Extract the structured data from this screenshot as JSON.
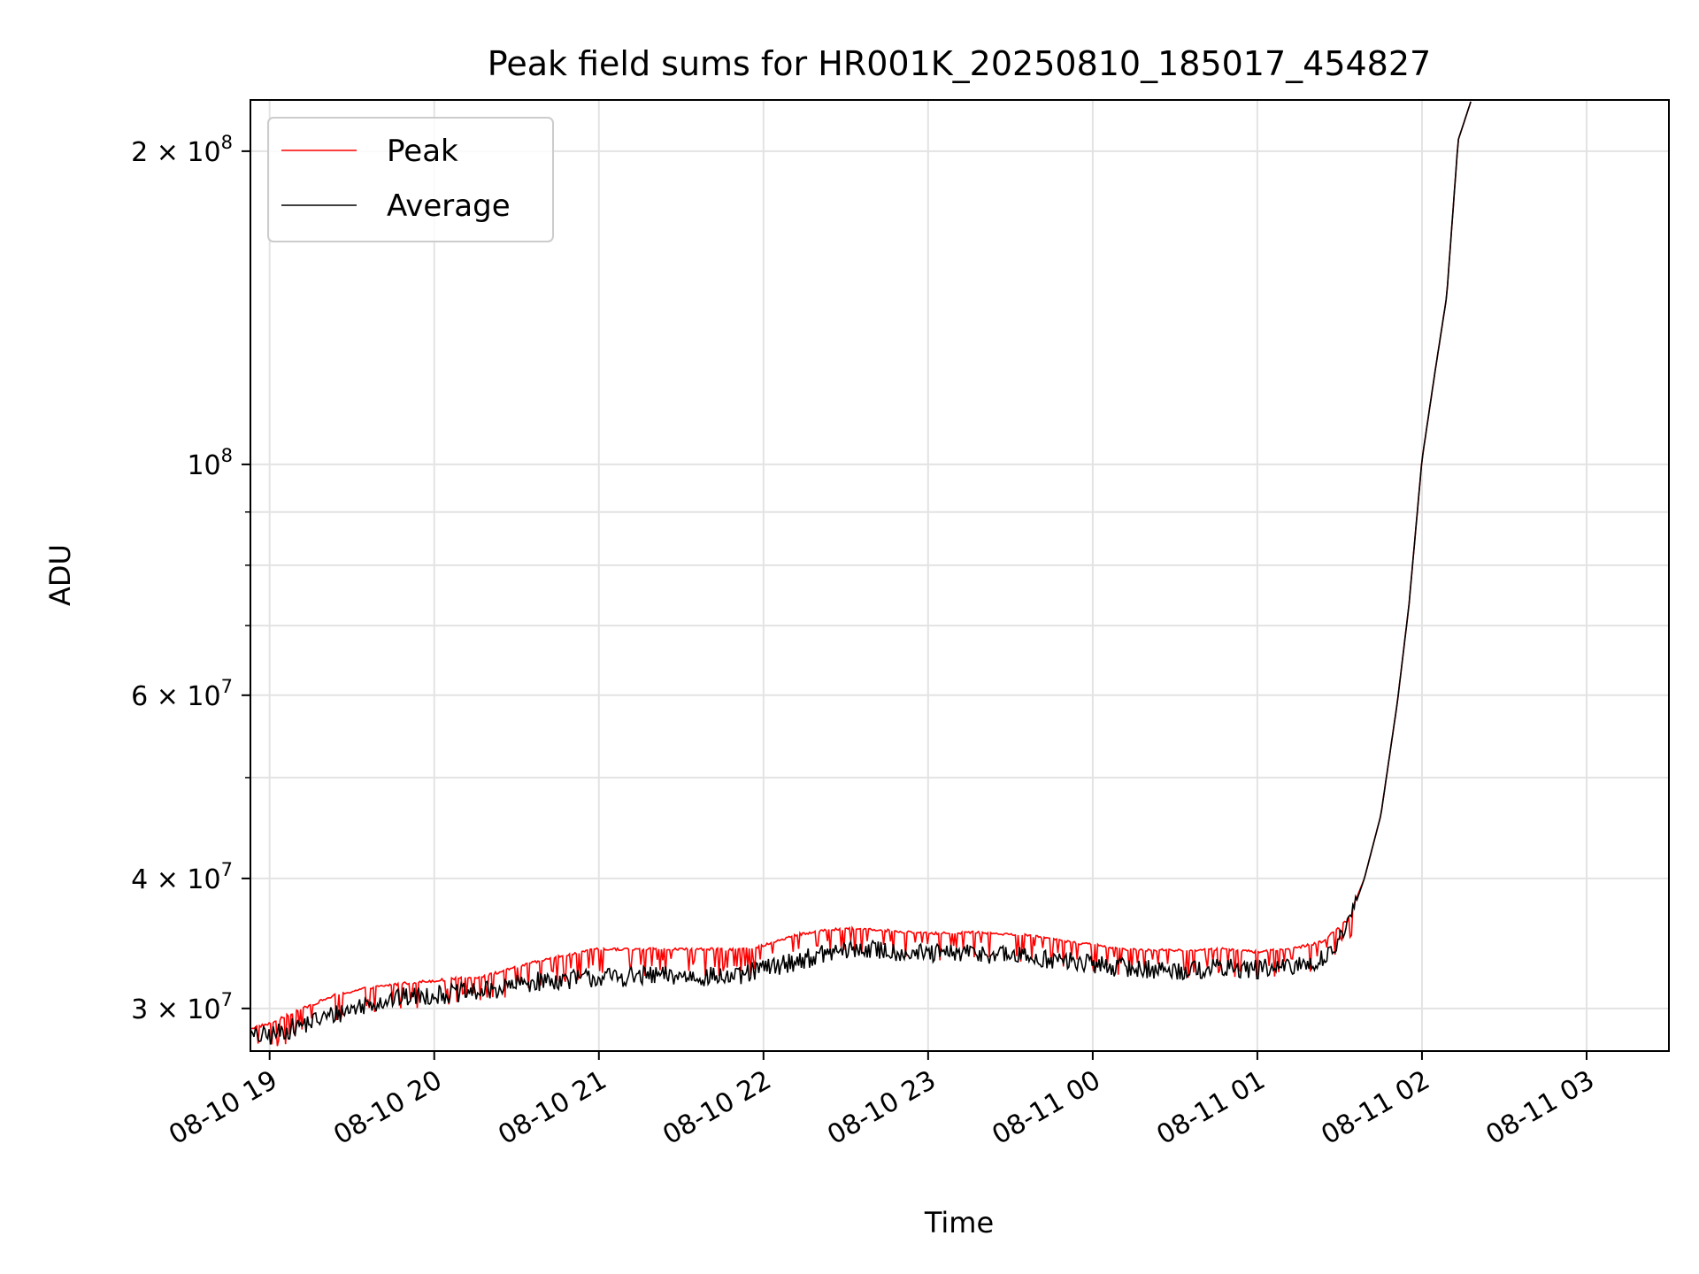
{
  "chart_data": {
    "type": "line",
    "title": "Peak field sums for HR001K_20250810_185017_454827",
    "xlabel": "Time",
    "ylabel": "ADU",
    "y_scale": "log",
    "grid": true,
    "legend_placement": "upper-left",
    "xlim": [
      "2025-08-10 18:53",
      "2025-08-11 03:30"
    ],
    "ylim": [
      27300000,
      224000000
    ],
    "x_tick_labels": [
      "08-10 19",
      "08-10 20",
      "08-10 21",
      "08-10 22",
      "08-10 23",
      "08-11 00",
      "08-11 01",
      "08-11 02",
      "08-11 03"
    ],
    "x_tick_hours": [
      19,
      20,
      21,
      22,
      23,
      24,
      25,
      26,
      27
    ],
    "y_major_ticks": [
      {
        "value": 30000000,
        "mantissa": "3",
        "exp": "7"
      },
      {
        "value": 40000000,
        "mantissa": "4",
        "exp": "7"
      },
      {
        "value": 60000000,
        "mantissa": "6",
        "exp": "7"
      },
      {
        "value": 100000000,
        "mantissa": "",
        "exp": "8"
      },
      {
        "value": 200000000,
        "mantissa": "2",
        "exp": "8"
      }
    ],
    "y_minor_ticks": [
      50000000,
      70000000,
      80000000,
      90000000
    ],
    "series": [
      {
        "name": "Peak",
        "color": "#ff0000",
        "x_hours": [
          18.88,
          19.0,
          19.2,
          19.4,
          19.6,
          19.8,
          20.0,
          20.3,
          20.6,
          20.85,
          21.0,
          21.3,
          21.6,
          21.85,
          21.95,
          22.2,
          22.4,
          22.6,
          22.8,
          23.0,
          23.3,
          23.6,
          23.9,
          24.2,
          24.5,
          24.8,
          25.0,
          25.2,
          25.4,
          25.55,
          25.65,
          25.75,
          25.85,
          25.92,
          26.0,
          26.08,
          26.15,
          26.22,
          26.3
        ],
        "y": [
          28700000,
          29000000,
          30000000,
          30900000,
          31400000,
          31700000,
          31900000,
          32200000,
          33200000,
          33900000,
          34200000,
          34200000,
          34200000,
          34200000,
          34300000,
          35300000,
          35700000,
          35800000,
          35600000,
          35400000,
          35500000,
          35300000,
          34700000,
          34200000,
          34100000,
          34200000,
          34000000,
          34200000,
          34800000,
          36500000,
          40000000,
          46000000,
          59000000,
          73000000,
          101000000,
          123000000,
          145000000,
          205000000,
          224000000
        ],
        "noise": 0.04,
        "noise_end_hour": 25.6
      },
      {
        "name": "Average",
        "color": "#000000",
        "x_hours": [
          18.88,
          19.0,
          19.2,
          19.4,
          19.6,
          19.8,
          20.0,
          20.3,
          20.6,
          20.85,
          21.0,
          21.3,
          21.6,
          21.85,
          21.95,
          22.2,
          22.4,
          22.6,
          22.8,
          23.0,
          23.3,
          23.6,
          23.9,
          24.2,
          24.5,
          24.8,
          25.0,
          25.2,
          25.4,
          25.55,
          25.65,
          25.75,
          25.85,
          25.92,
          26.0,
          26.08,
          26.15,
          26.22,
          26.3
        ],
        "y": [
          28200000,
          28300000,
          29000000,
          29700000,
          30400000,
          30800000,
          31000000,
          31200000,
          31900000,
          32100000,
          32200000,
          32300000,
          32300000,
          32200000,
          32700000,
          33400000,
          34000000,
          34300000,
          34100000,
          33900000,
          34000000,
          33700000,
          33300000,
          32900000,
          32700000,
          32900000,
          32800000,
          32900000,
          33500000,
          36000000,
          40000000,
          46000000,
          59000000,
          73000000,
          101000000,
          123000000,
          145000000,
          205000000,
          224000000
        ],
        "noise": 0.022,
        "noise_end_hour": 25.6
      }
    ]
  }
}
